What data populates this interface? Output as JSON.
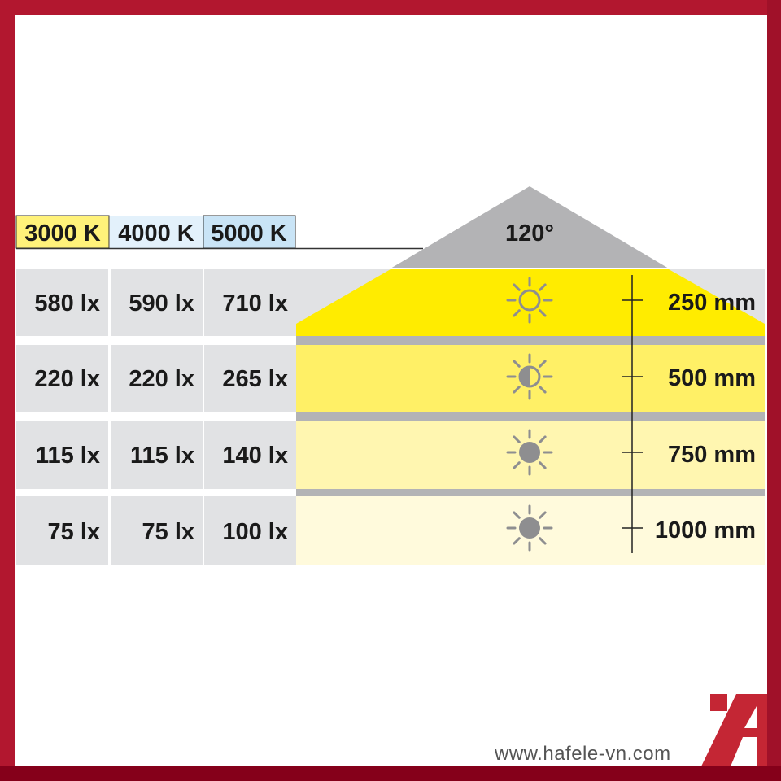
{
  "color_temperatures": [
    {
      "label": "3000 K",
      "color": "#fff27a"
    },
    {
      "label": "4000 K",
      "color": "#e3f1fb"
    },
    {
      "label": "5000 K",
      "color": "#c9e4f6"
    }
  ],
  "beam_angle": "120°",
  "rows": [
    {
      "lux": [
        "580 lx",
        "590 lx",
        "710 lx"
      ],
      "distance": "250 mm",
      "brightness_icon": "sun-bright-icon",
      "color": "#ffec00"
    },
    {
      "lux": [
        "220 lx",
        "220 lx",
        "265 lx"
      ],
      "distance": "500 mm",
      "brightness_icon": "sun-half-icon",
      "color": "#fff066"
    },
    {
      "lux": [
        "115 lx",
        "115 lx",
        "140 lx"
      ],
      "distance": "750 mm",
      "brightness_icon": "sun-dim-icon",
      "color": "#fff6b0"
    },
    {
      "lux": [
        "75 lx",
        "75 lx",
        "100 lx"
      ],
      "distance": "1000 mm",
      "brightness_icon": "sun-dim-icon",
      "color": "#fffadc"
    }
  ],
  "footer": {
    "url": "www.hafele-vn.com",
    "logo_color": "#c42634"
  }
}
